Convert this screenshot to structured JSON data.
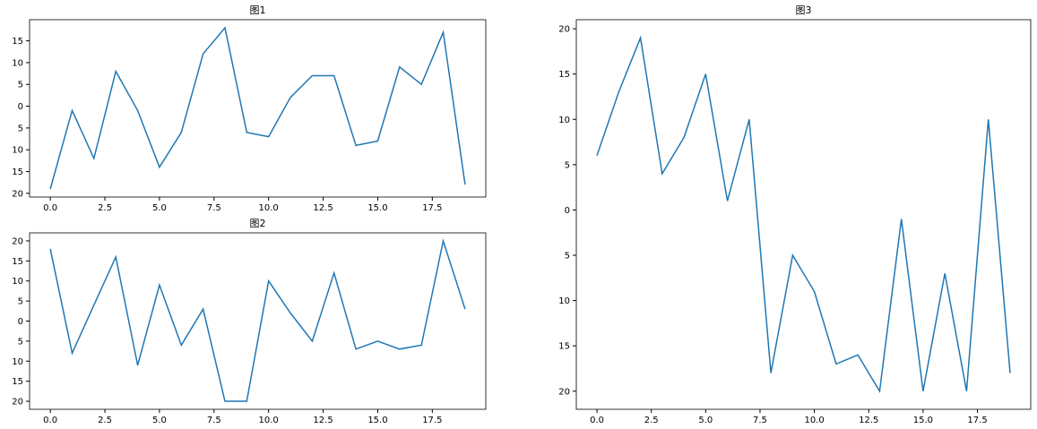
{
  "chart_data": [
    {
      "type": "line",
      "title": "图1",
      "color": "#1f77b4",
      "x": [
        0,
        1,
        2,
        3,
        4,
        5,
        6,
        7,
        8,
        9,
        10,
        11,
        12,
        13,
        14,
        15,
        16,
        17,
        18,
        19
      ],
      "values": [
        -19,
        -1,
        -12,
        8,
        -1,
        -14,
        -6,
        12,
        18,
        -6,
        -7,
        2,
        7,
        7,
        -9,
        -8,
        9,
        5,
        17,
        -18
      ],
      "xlim": [
        -0.95,
        19.95
      ],
      "xticks": [
        {
          "value": 0,
          "label": "0.0"
        },
        2.5,
        {
          "value": 5,
          "label": "5.0"
        },
        7.5,
        {
          "value": 10,
          "label": "10.0"
        },
        12.5,
        {
          "value": 15,
          "label": "15.0"
        },
        17.5
      ],
      "ylim": [
        -20.85,
        19.85
      ],
      "yticks": [
        {
          "value": -20,
          "label": "20"
        },
        {
          "value": -15,
          "label": "15"
        },
        {
          "value": -10,
          "label": "10"
        },
        {
          "value": -5,
          "label": "5"
        },
        0,
        5,
        10,
        15
      ]
    },
    {
      "type": "line",
      "title": "图2",
      "color": "#1f77b4",
      "x": [
        0,
        1,
        2,
        3,
        4,
        5,
        6,
        7,
        8,
        9,
        10,
        11,
        12,
        13,
        14,
        15,
        16,
        17,
        18,
        19
      ],
      "values": [
        18,
        -8,
        4,
        16,
        -11,
        9,
        -6,
        3,
        -20,
        -20,
        10,
        2,
        -5,
        12,
        -7,
        -5,
        -7,
        -6,
        20,
        3
      ],
      "xlim": [
        -0.95,
        19.95
      ],
      "xticks": [
        {
          "value": 0,
          "label": "0.0"
        },
        2.5,
        {
          "value": 5,
          "label": "5.0"
        },
        7.5,
        {
          "value": 10,
          "label": "10.0"
        },
        12.5,
        {
          "value": 15,
          "label": "15.0"
        },
        17.5
      ],
      "ylim": [
        -22,
        22
      ],
      "yticks": [
        {
          "value": -20,
          "label": "20"
        },
        {
          "value": -15,
          "label": "15"
        },
        {
          "value": -10,
          "label": "10"
        },
        {
          "value": -5,
          "label": "5"
        },
        0,
        5,
        10,
        15,
        20
      ]
    },
    {
      "type": "line",
      "title": "图3",
      "color": "#1f77b4",
      "x": [
        0,
        1,
        2,
        3,
        4,
        5,
        6,
        7,
        8,
        9,
        10,
        11,
        12,
        13,
        14,
        15,
        16,
        17,
        18,
        19
      ],
      "values": [
        6,
        13,
        19,
        4,
        8,
        15,
        1,
        10,
        -18,
        -5,
        -9,
        -17,
        -16,
        -20,
        -1,
        -20,
        -7,
        -20,
        10,
        -18
      ],
      "xlim": [
        -0.95,
        19.95
      ],
      "xticks": [
        {
          "value": 0,
          "label": "0.0"
        },
        2.5,
        {
          "value": 5,
          "label": "5.0"
        },
        7.5,
        {
          "value": 10,
          "label": "10.0"
        },
        12.5,
        {
          "value": 15,
          "label": "15.0"
        },
        17.5
      ],
      "ylim": [
        -22,
        21
      ],
      "yticks": [
        {
          "value": -20,
          "label": "20"
        },
        {
          "value": -15,
          "label": "15"
        },
        {
          "value": -10,
          "label": "10"
        },
        {
          "value": -5,
          "label": "5"
        },
        0,
        5,
        10,
        15,
        20
      ]
    }
  ]
}
